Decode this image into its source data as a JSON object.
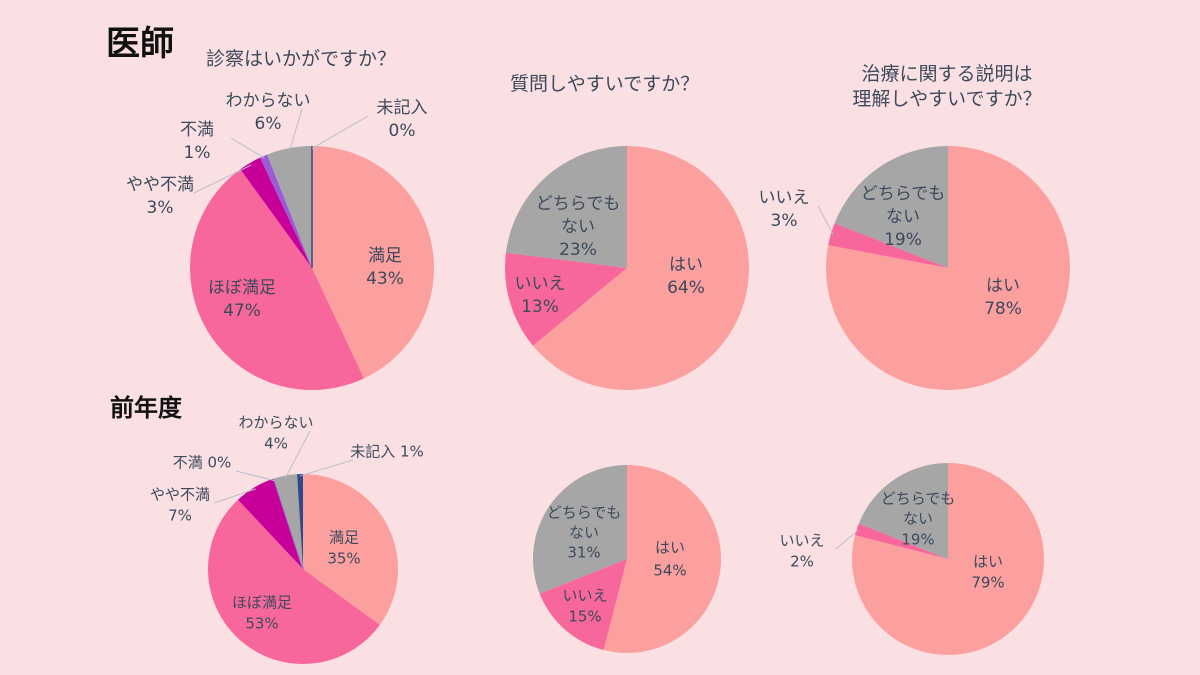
{
  "section_current": "医師",
  "section_previous": "前年度",
  "chart_data": [
    {
      "type": "pie",
      "title": "診察はいかがですか？",
      "period": "current",
      "slices": [
        {
          "label": "満足",
          "value": 43,
          "color": "#fca09f"
        },
        {
          "label": "ほぼ満足",
          "value": 47,
          "color": "#f7679b"
        },
        {
          "label": "やや不満",
          "value": 3,
          "color": "#c8009a"
        },
        {
          "label": "不満",
          "value": 1,
          "color": "#9a5bd6"
        },
        {
          "label": "わからない",
          "value": 6,
          "color": "#a6a6a6"
        },
        {
          "label": "未記入",
          "value": 0,
          "color": "#2f4a8a"
        }
      ]
    },
    {
      "type": "pie",
      "title": "質問しやすいですか？",
      "period": "current",
      "slices": [
        {
          "label": "はい",
          "value": 64,
          "color": "#fca09f"
        },
        {
          "label": "いいえ",
          "value": 13,
          "color": "#f7679b"
        },
        {
          "label": "どちらでも ない",
          "value": 23,
          "color": "#a6a6a6"
        }
      ]
    },
    {
      "type": "pie",
      "title": "治療に関する説明は 理解しやすいですか？",
      "period": "current",
      "slices": [
        {
          "label": "はい",
          "value": 78,
          "color": "#fca09f"
        },
        {
          "label": "いいえ",
          "value": 3,
          "color": "#f7679b"
        },
        {
          "label": "どちらでも ない",
          "value": 19,
          "color": "#a6a6a6"
        }
      ]
    },
    {
      "type": "pie",
      "title": "",
      "period": "previous",
      "slices": [
        {
          "label": "満足",
          "value": 35,
          "color": "#fca09f"
        },
        {
          "label": "ほぼ満足",
          "value": 53,
          "color": "#f7679b"
        },
        {
          "label": "やや不満",
          "value": 7,
          "color": "#c8009a"
        },
        {
          "label": "不満",
          "value": 0,
          "color": "#9a5bd6"
        },
        {
          "label": "わからない",
          "value": 4,
          "color": "#a6a6a6"
        },
        {
          "label": "未記入",
          "value": 1,
          "color": "#2f4a8a"
        }
      ]
    },
    {
      "type": "pie",
      "title": "",
      "period": "previous",
      "slices": [
        {
          "label": "はい",
          "value": 54,
          "color": "#fca09f"
        },
        {
          "label": "いいえ",
          "value": 15,
          "color": "#f7679b"
        },
        {
          "label": "どちらでも ない",
          "value": 31,
          "color": "#a6a6a6"
        }
      ]
    },
    {
      "type": "pie",
      "title": "",
      "period": "previous",
      "slices": [
        {
          "label": "はい",
          "value": 79,
          "color": "#fca09f"
        },
        {
          "label": "いいえ",
          "value": 2,
          "color": "#f7679b"
        },
        {
          "label": "どちらでも ない",
          "value": 19,
          "color": "#a6a6a6"
        }
      ]
    }
  ]
}
